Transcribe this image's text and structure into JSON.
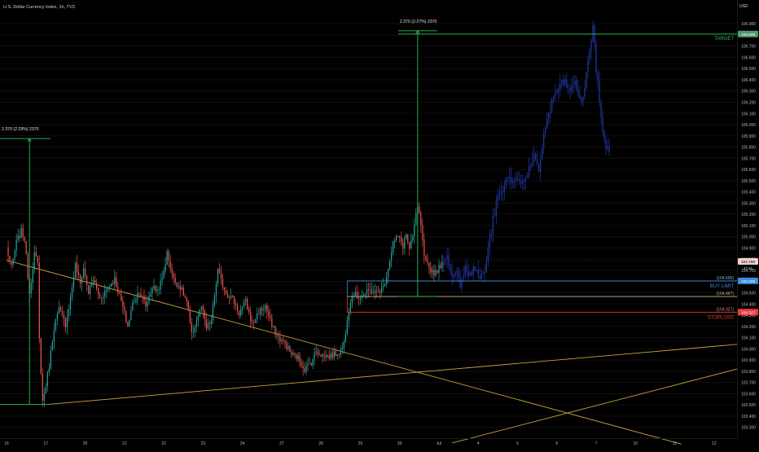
{
  "header": {
    "title": "U.S. Dollar Currency Index, 1h, TVC"
  },
  "axis": {
    "currency": "USD"
  },
  "colors": {
    "background": "#000000",
    "candle_up": "#26a69a",
    "candle_down": "#ef5350",
    "projection": "#2139a6",
    "trendline": "#c9a43a",
    "measure": "#2ebd5e",
    "buy_limit": "#3b8cdc",
    "stoploss": "#ef3b3b",
    "entry": "#c9b58f",
    "current_price": "#f0d0d0",
    "target_badge": "#4f9a6f",
    "grid": "#0f0f0f"
  },
  "measures": [
    {
      "label": "2.370 (2.29%) 2370"
    },
    {
      "label": "2.370 (2.27%) 2370"
    }
  ],
  "levels": {
    "target": {
      "name": "TARGET",
      "price": 106.808,
      "badge": "106.808"
    },
    "current": {
      "price": 104.78,
      "badge": "104.780",
      "countdown": "47:21"
    },
    "buy_limit": {
      "name": "BUY LIMIT",
      "price": 104.606,
      "value_text": "(104.606)",
      "badge": "104.606"
    },
    "entry": {
      "price": 104.467,
      "value_text": "(104.467)"
    },
    "stoploss": {
      "name": "STOPLOSS",
      "price": 104.327,
      "value_text": "(104.327)",
      "badge": "104.327"
    }
  },
  "chart_data": {
    "type": "candlestick",
    "title": "U.S. Dollar Currency Index, 1h, TVC",
    "ylabel": "USD",
    "ylim": [
      103.1,
      107.1
    ],
    "y_ticks": [
      103.2,
      103.3,
      103.4,
      103.5,
      103.6,
      103.7,
      103.8,
      103.9,
      104.0,
      104.1,
      104.2,
      104.3,
      104.4,
      104.5,
      104.6,
      104.7,
      104.8,
      104.9,
      105.0,
      105.1,
      105.2,
      105.3,
      105.4,
      105.5,
      105.6,
      105.7,
      105.8,
      105.9,
      106.0,
      106.1,
      106.2,
      106.3,
      106.4,
      106.5,
      106.6,
      106.7,
      106.8,
      106.9
    ],
    "y_tick_labels": [
      "103.200",
      "103.300",
      "103.400",
      "103.500",
      "103.600",
      "103.700",
      "103.800",
      "103.900",
      "104.000",
      "104.100",
      "104.200",
      "104.300",
      "104.400",
      "104.500",
      "104.600",
      "104.700",
      "104.800",
      "104.900",
      "105.000",
      "105.100",
      "105.200",
      "105.300",
      "105.400",
      "105.500",
      "105.600",
      "105.700",
      "105.800",
      "105.900",
      "106.000",
      "106.100",
      "106.200",
      "106.300",
      "106.400",
      "106.500",
      "106.600",
      "106.700",
      "106.800",
      "106.900"
    ],
    "x_ticks": [
      {
        "label": "16",
        "slot": 0
      },
      {
        "label": "17",
        "slot": 24
      },
      {
        "label": "20",
        "slot": 48
      },
      {
        "label": "21",
        "slot": 72
      },
      {
        "label": "22",
        "slot": 96
      },
      {
        "label": "23",
        "slot": 120
      },
      {
        "label": "24",
        "slot": 144
      },
      {
        "label": "27",
        "slot": 168
      },
      {
        "label": "28",
        "slot": 192
      },
      {
        "label": "29",
        "slot": 216
      },
      {
        "label": "30",
        "slot": 240
      },
      {
        "label": "Jul",
        "slot": 264
      },
      {
        "label": "4",
        "slot": 288
      },
      {
        "label": "5",
        "slot": 312
      },
      {
        "label": "6",
        "slot": 336
      },
      {
        "label": "7",
        "slot": 360
      },
      {
        "label": "10",
        "slot": 384
      },
      {
        "label": "11",
        "slot": 408
      },
      {
        "label": "12",
        "slot": 432
      }
    ],
    "x_range_slots": [
      -4,
      446
    ],
    "anchors": [
      [
        0,
        104.9
      ],
      [
        3,
        104.72
      ],
      [
        6,
        104.95
      ],
      [
        9,
        105.05
      ],
      [
        11,
        104.98
      ],
      [
        14,
        104.5
      ],
      [
        17,
        104.85
      ],
      [
        19,
        104.75
      ],
      [
        20,
        104.08
      ],
      [
        22,
        103.53
      ],
      [
        23,
        103.6
      ],
      [
        26,
        103.85
      ],
      [
        29,
        104.2
      ],
      [
        32,
        104.35
      ],
      [
        36,
        104.22
      ],
      [
        39,
        104.45
      ],
      [
        42,
        104.75
      ],
      [
        45,
        104.58
      ],
      [
        47,
        104.72
      ],
      [
        50,
        104.5
      ],
      [
        53,
        104.62
      ],
      [
        57,
        104.45
      ],
      [
        62,
        104.55
      ],
      [
        66,
        104.62
      ],
      [
        70,
        104.42
      ],
      [
        74,
        104.2
      ],
      [
        77,
        104.4
      ],
      [
        81,
        104.52
      ],
      [
        85,
        104.38
      ],
      [
        89,
        104.55
      ],
      [
        92,
        104.52
      ],
      [
        95,
        104.62
      ],
      [
        98,
        104.85
      ],
      [
        102,
        104.62
      ],
      [
        106,
        104.55
      ],
      [
        110,
        104.42
      ],
      [
        113,
        104.12
      ],
      [
        116,
        104.25
      ],
      [
        119,
        104.38
      ],
      [
        122,
        104.18
      ],
      [
        125,
        104.25
      ],
      [
        127,
        104.48
      ],
      [
        129,
        104.7
      ],
      [
        131,
        104.6
      ],
      [
        134,
        104.5
      ],
      [
        138,
        104.45
      ],
      [
        142,
        104.32
      ],
      [
        146,
        104.42
      ],
      [
        150,
        104.22
      ],
      [
        154,
        104.33
      ],
      [
        158,
        104.38
      ],
      [
        162,
        104.2
      ],
      [
        166,
        104.1
      ],
      [
        170,
        104.05
      ],
      [
        174,
        103.95
      ],
      [
        178,
        103.92
      ],
      [
        182,
        103.82
      ],
      [
        186,
        103.88
      ],
      [
        189,
        103.98
      ],
      [
        192,
        103.95
      ],
      [
        196,
        103.93
      ],
      [
        200,
        103.95
      ],
      [
        204,
        103.98
      ],
      [
        206,
        104.05
      ],
      [
        208,
        104.28
      ],
      [
        210,
        104.43
      ],
      [
        212,
        104.5
      ],
      [
        214,
        104.46
      ],
      [
        218,
        104.48
      ],
      [
        222,
        104.52
      ],
      [
        226,
        104.5
      ],
      [
        230,
        104.55
      ],
      [
        233,
        104.72
      ],
      [
        236,
        104.95
      ],
      [
        239,
        105.0
      ],
      [
        242,
        104.92
      ],
      [
        244,
        105.02
      ],
      [
        246,
        104.88
      ],
      [
        248,
        105.0
      ],
      [
        251,
        105.28
      ],
      [
        253,
        105.1
      ],
      [
        255,
        104.8
      ],
      [
        258,
        104.72
      ],
      [
        261,
        104.68
      ],
      [
        264,
        104.72
      ],
      [
        266,
        104.78
      ]
    ],
    "projection_anchors": [
      [
        266,
        104.76
      ],
      [
        269,
        104.82
      ],
      [
        272,
        104.65
      ],
      [
        274,
        104.72
      ],
      [
        277,
        104.58
      ],
      [
        280,
        104.75
      ],
      [
        283,
        104.66
      ],
      [
        286,
        104.72
      ],
      [
        289,
        104.62
      ],
      [
        292,
        104.7
      ],
      [
        294,
        104.88
      ],
      [
        297,
        105.15
      ],
      [
        300,
        105.35
      ],
      [
        303,
        105.4
      ],
      [
        306,
        105.55
      ],
      [
        309,
        105.48
      ],
      [
        312,
        105.52
      ],
      [
        316,
        105.5
      ],
      [
        319,
        105.6
      ],
      [
        322,
        105.7
      ],
      [
        325,
        105.58
      ],
      [
        328,
        105.92
      ],
      [
        331,
        106.1
      ],
      [
        334,
        106.25
      ],
      [
        338,
        106.35
      ],
      [
        341,
        106.38
      ],
      [
        344,
        106.28
      ],
      [
        347,
        106.4
      ],
      [
        350,
        106.2
      ],
      [
        353,
        106.3
      ],
      [
        355,
        106.6
      ],
      [
        357,
        106.75
      ],
      [
        358,
        106.88
      ],
      [
        360,
        106.5
      ],
      [
        362,
        106.2
      ],
      [
        364,
        105.95
      ],
      [
        366,
        105.8
      ],
      [
        368,
        105.75
      ]
    ],
    "trendlines": [
      {
        "name": "descending",
        "from": [
          0,
          104.79
        ],
        "to": [
          412,
          103.15
        ]
      },
      {
        "name": "ascending-lower",
        "from": [
          26,
          103.505
        ],
        "to": [
          446,
          104.04
        ]
      },
      {
        "name": "ascending-far",
        "from": [
          272,
          103.16
        ],
        "to": [
          446,
          103.82
        ]
      }
    ],
    "measure_tools": [
      {
        "label": "2.370 (2.29%) 2370",
        "x_slot": 14,
        "from": 103.505,
        "to": 105.875
      },
      {
        "label": "2.370 (2.27%) 2370",
        "x_slot": 251,
        "from": 104.467,
        "to": 106.837
      }
    ]
  }
}
